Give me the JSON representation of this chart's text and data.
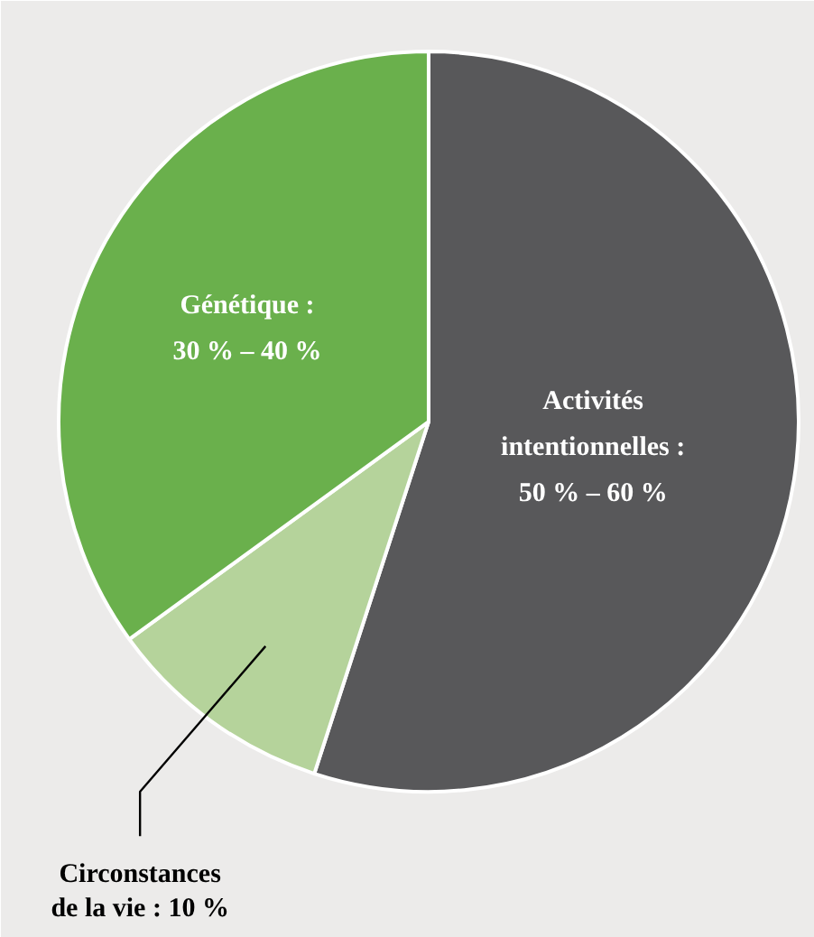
{
  "chart_data": {
    "type": "pie",
    "categories": [
      "Activités\nintentionnelles :\n50 % – 60 %",
      "Circonstances\nde la vie : 10 %",
      "Génétique :\n30 % – 40 %"
    ],
    "values": [
      55,
      10,
      35
    ],
    "colors": [
      "#58585a",
      "#b5d39b",
      "#6ab04c"
    ]
  }
}
